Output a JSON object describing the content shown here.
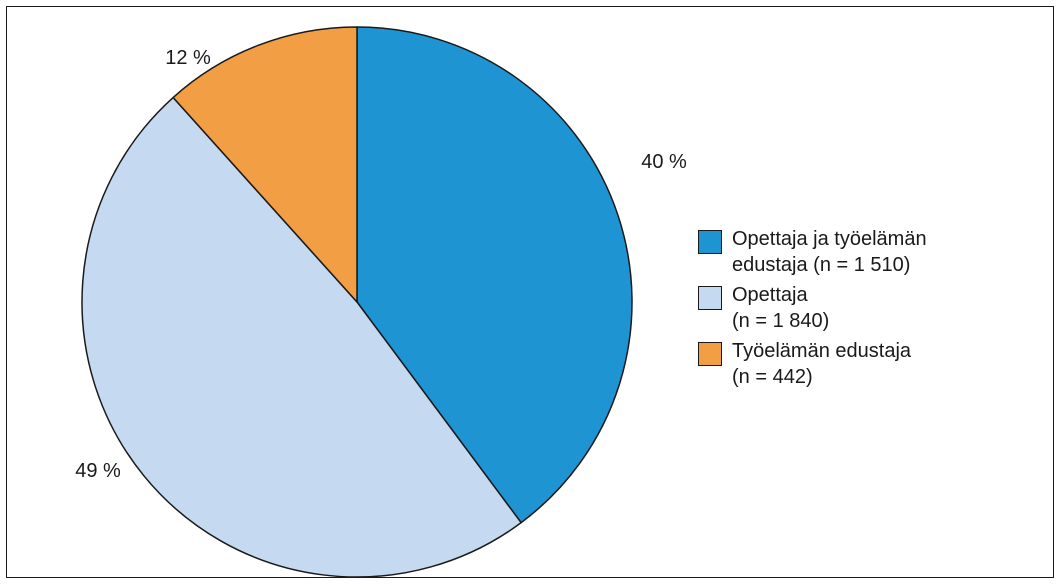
{
  "chart_data": {
    "type": "pie",
    "title": "",
    "slices": [
      {
        "label_line1": "Opettaja ja työelämän",
        "label_line2": "edustaja (n = 1 510)",
        "n": 1510,
        "percent_label": "40 %",
        "color": "#1f94d2"
      },
      {
        "label_line1": "Opettaja",
        "label_line2": "(n = 1 840)",
        "n": 1840,
        "percent_label": "49 %",
        "color": "#c5daf0"
      },
      {
        "label_line1": "Työelämän edustaja",
        "label_line2": "(n = 442)",
        "n": 442,
        "percent_label": "12 %",
        "color": "#f19e45"
      }
    ],
    "legend_position": "right"
  }
}
